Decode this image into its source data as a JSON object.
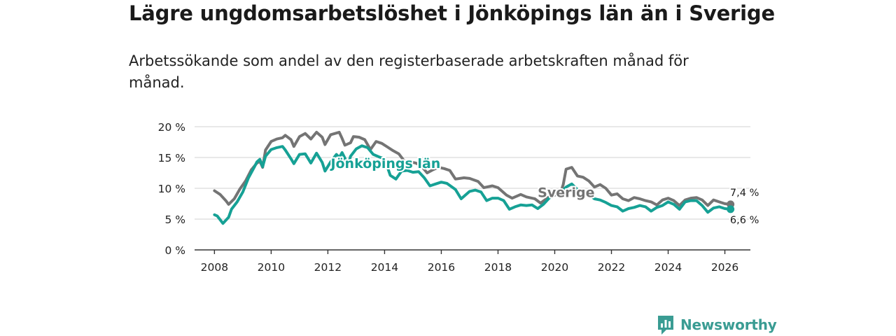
{
  "title": "Lägre ungdomsarbetslöshet i Jönköpings län än i Sverige",
  "subtitle": "Arbetssökande som andel av den registerbaserade arbetskraften månad för månad.",
  "brand": {
    "name": "Newsworthy",
    "icon": "newsworthy-chart-icon"
  },
  "colors": {
    "sverige": "#747474",
    "jonkoping": "#16a195",
    "grid": "#d9d9d9",
    "axis": "#333333"
  },
  "chart_data": {
    "type": "line",
    "title": "Lägre ungdomsarbetslöshet i Jönköpings län än i Sverige",
    "xlabel": "",
    "ylabel": "",
    "ylim": [
      0,
      20
    ],
    "xlim": [
      2007.3,
      2026.9
    ],
    "grid": true,
    "y_ticks": [
      0,
      5,
      10,
      15,
      20
    ],
    "y_tick_labels": [
      "0 %",
      "5 %",
      "10 %",
      "15 %",
      "20 %"
    ],
    "x_ticks": [
      2008,
      2010,
      2012,
      2014,
      2016,
      2018,
      2020,
      2022,
      2024,
      2026
    ],
    "x_tick_labels": [
      "2008",
      "2010",
      "2012",
      "2014",
      "2016",
      "2018",
      "2020",
      "2022",
      "2024",
      "2026"
    ],
    "series": [
      {
        "name": "Sverige",
        "label": "Sverige",
        "end_label": "7,4 %",
        "points": [
          [
            2008.0,
            9.6
          ],
          [
            2008.2,
            9.0
          ],
          [
            2008.4,
            8.0
          ],
          [
            2008.5,
            7.4
          ],
          [
            2008.7,
            8.3
          ],
          [
            2008.9,
            9.9
          ],
          [
            2009.1,
            11.2
          ],
          [
            2009.3,
            13.0
          ],
          [
            2009.5,
            14.1
          ],
          [
            2009.6,
            14.4
          ],
          [
            2009.7,
            13.4
          ],
          [
            2009.8,
            16.2
          ],
          [
            2010.0,
            17.6
          ],
          [
            2010.2,
            18.0
          ],
          [
            2010.4,
            18.2
          ],
          [
            2010.5,
            18.6
          ],
          [
            2010.7,
            17.9
          ],
          [
            2010.8,
            16.8
          ],
          [
            2011.0,
            18.4
          ],
          [
            2011.2,
            18.9
          ],
          [
            2011.4,
            18.0
          ],
          [
            2011.6,
            19.1
          ],
          [
            2011.8,
            18.3
          ],
          [
            2011.9,
            17.1
          ],
          [
            2012.1,
            18.7
          ],
          [
            2012.4,
            19.1
          ],
          [
            2012.5,
            18.1
          ],
          [
            2012.6,
            17.0
          ],
          [
            2012.8,
            17.4
          ],
          [
            2012.9,
            18.4
          ],
          [
            2013.1,
            18.3
          ],
          [
            2013.3,
            17.9
          ],
          [
            2013.5,
            16.3
          ],
          [
            2013.7,
            17.6
          ],
          [
            2013.9,
            17.3
          ],
          [
            2014.1,
            16.7
          ],
          [
            2014.3,
            16.1
          ],
          [
            2014.5,
            15.6
          ],
          [
            2014.7,
            14.4
          ],
          [
            2014.9,
            14.3
          ],
          [
            2015.1,
            14.1
          ],
          [
            2015.3,
            13.6
          ],
          [
            2015.5,
            12.5
          ],
          [
            2015.7,
            13.0
          ],
          [
            2015.9,
            13.4
          ],
          [
            2016.1,
            13.2
          ],
          [
            2016.3,
            12.9
          ],
          [
            2016.5,
            11.5
          ],
          [
            2016.8,
            11.7
          ],
          [
            2017.0,
            11.6
          ],
          [
            2017.3,
            11.1
          ],
          [
            2017.5,
            10.1
          ],
          [
            2017.8,
            10.4
          ],
          [
            2018.0,
            10.1
          ],
          [
            2018.3,
            8.9
          ],
          [
            2018.5,
            8.4
          ],
          [
            2018.8,
            9.0
          ],
          [
            2019.0,
            8.6
          ],
          [
            2019.3,
            8.3
          ],
          [
            2019.5,
            7.6
          ],
          [
            2019.8,
            8.6
          ],
          [
            2020.0,
            8.9
          ],
          [
            2020.2,
            9.2
          ],
          [
            2020.3,
            10.6
          ],
          [
            2020.4,
            13.1
          ],
          [
            2020.6,
            13.4
          ],
          [
            2020.8,
            12.0
          ],
          [
            2021.0,
            11.8
          ],
          [
            2021.2,
            11.2
          ],
          [
            2021.4,
            10.2
          ],
          [
            2021.6,
            10.6
          ],
          [
            2021.8,
            10.0
          ],
          [
            2022.0,
            8.9
          ],
          [
            2022.2,
            9.1
          ],
          [
            2022.4,
            8.3
          ],
          [
            2022.6,
            8.0
          ],
          [
            2022.8,
            8.5
          ],
          [
            2023.0,
            8.3
          ],
          [
            2023.2,
            8.0
          ],
          [
            2023.4,
            7.8
          ],
          [
            2023.6,
            7.3
          ],
          [
            2023.8,
            8.1
          ],
          [
            2024.0,
            8.4
          ],
          [
            2024.2,
            8.0
          ],
          [
            2024.4,
            7.2
          ],
          [
            2024.6,
            8.1
          ],
          [
            2024.8,
            8.4
          ],
          [
            2025.0,
            8.5
          ],
          [
            2025.2,
            8.1
          ],
          [
            2025.4,
            7.2
          ],
          [
            2025.6,
            8.1
          ],
          [
            2025.8,
            7.8
          ],
          [
            2026.0,
            7.5
          ],
          [
            2026.2,
            7.4
          ]
        ]
      },
      {
        "name": "Jönköpings län",
        "label": "Jönköpings län",
        "end_label": "6,6 %",
        "points": [
          [
            2008.0,
            5.7
          ],
          [
            2008.1,
            5.5
          ],
          [
            2008.2,
            4.9
          ],
          [
            2008.3,
            4.3
          ],
          [
            2008.5,
            5.3
          ],
          [
            2008.6,
            6.6
          ],
          [
            2008.8,
            7.8
          ],
          [
            2009.0,
            9.4
          ],
          [
            2009.2,
            11.7
          ],
          [
            2009.4,
            13.4
          ],
          [
            2009.5,
            14.3
          ],
          [
            2009.6,
            14.7
          ],
          [
            2009.7,
            13.5
          ],
          [
            2009.8,
            15.2
          ],
          [
            2010.0,
            16.3
          ],
          [
            2010.2,
            16.6
          ],
          [
            2010.4,
            16.8
          ],
          [
            2010.5,
            16.2
          ],
          [
            2010.7,
            14.8
          ],
          [
            2010.8,
            14.0
          ],
          [
            2011.0,
            15.5
          ],
          [
            2011.2,
            15.6
          ],
          [
            2011.4,
            14.1
          ],
          [
            2011.6,
            15.7
          ],
          [
            2011.8,
            14.2
          ],
          [
            2011.9,
            12.8
          ],
          [
            2012.1,
            14.3
          ],
          [
            2012.3,
            15.5
          ],
          [
            2012.4,
            15.0
          ],
          [
            2012.5,
            15.8
          ],
          [
            2012.6,
            14.9
          ],
          [
            2012.7,
            13.5
          ],
          [
            2012.8,
            15.2
          ],
          [
            2013.0,
            16.4
          ],
          [
            2013.2,
            16.9
          ],
          [
            2013.4,
            16.6
          ],
          [
            2013.6,
            15.5
          ],
          [
            2013.8,
            15.1
          ],
          [
            2014.0,
            14.8
          ],
          [
            2014.2,
            12.1
          ],
          [
            2014.4,
            11.5
          ],
          [
            2014.6,
            12.8
          ],
          [
            2014.8,
            12.9
          ],
          [
            2015.0,
            12.6
          ],
          [
            2015.2,
            12.7
          ],
          [
            2015.4,
            11.7
          ],
          [
            2015.6,
            10.4
          ],
          [
            2015.8,
            10.7
          ],
          [
            2016.0,
            11.0
          ],
          [
            2016.2,
            10.8
          ],
          [
            2016.5,
            9.8
          ],
          [
            2016.7,
            8.3
          ],
          [
            2017.0,
            9.5
          ],
          [
            2017.2,
            9.7
          ],
          [
            2017.4,
            9.4
          ],
          [
            2017.6,
            8.0
          ],
          [
            2017.8,
            8.4
          ],
          [
            2018.0,
            8.4
          ],
          [
            2018.2,
            8.0
          ],
          [
            2018.4,
            6.6
          ],
          [
            2018.6,
            7.0
          ],
          [
            2018.8,
            7.3
          ],
          [
            2019.0,
            7.2
          ],
          [
            2019.2,
            7.3
          ],
          [
            2019.4,
            6.7
          ],
          [
            2019.6,
            7.4
          ],
          [
            2019.8,
            8.4
          ],
          [
            2020.0,
            9.1
          ],
          [
            2020.2,
            9.3
          ],
          [
            2020.4,
            10.2
          ],
          [
            2020.6,
            10.7
          ],
          [
            2020.8,
            9.8
          ],
          [
            2021.0,
            9.6
          ],
          [
            2021.2,
            9.0
          ],
          [
            2021.4,
            8.3
          ],
          [
            2021.6,
            8.1
          ],
          [
            2021.8,
            7.7
          ],
          [
            2022.0,
            7.2
          ],
          [
            2022.2,
            7.0
          ],
          [
            2022.4,
            6.3
          ],
          [
            2022.6,
            6.7
          ],
          [
            2022.8,
            6.9
          ],
          [
            2023.0,
            7.2
          ],
          [
            2023.2,
            7.0
          ],
          [
            2023.4,
            6.3
          ],
          [
            2023.6,
            6.9
          ],
          [
            2023.8,
            7.2
          ],
          [
            2024.0,
            7.8
          ],
          [
            2024.2,
            7.4
          ],
          [
            2024.4,
            6.6
          ],
          [
            2024.6,
            7.8
          ],
          [
            2024.8,
            8.0
          ],
          [
            2025.0,
            8.0
          ],
          [
            2025.2,
            7.2
          ],
          [
            2025.4,
            6.1
          ],
          [
            2025.6,
            6.8
          ],
          [
            2025.8,
            7.0
          ],
          [
            2026.0,
            6.7
          ],
          [
            2026.2,
            6.6
          ]
        ]
      }
    ]
  }
}
